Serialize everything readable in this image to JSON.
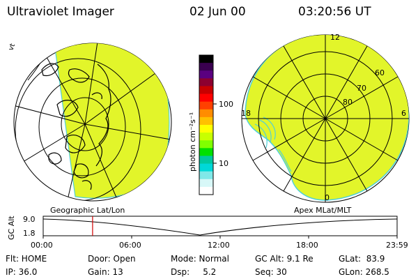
{
  "header": {
    "instrument": "Ultraviolet Imager",
    "date": "02 Jun 00",
    "time": "03:20:56 UT"
  },
  "colorbar": {
    "unit_label": "photon cm⁻²s⁻¹",
    "tick_100": "100",
    "tick_10": "10",
    "colors": [
      "#000000",
      "#3a0050",
      "#5a0080",
      "#8c0030",
      "#c80000",
      "#ff0000",
      "#ff4000",
      "#ff8c00",
      "#ffc000",
      "#ffff00",
      "#c8ff00",
      "#80ff00",
      "#00e000",
      "#00c8a0",
      "#00d8d8",
      "#80e8e8",
      "#d8f8f8",
      "#ffffff"
    ]
  },
  "left_map": {
    "label": "Geographic Lat/Lon",
    "fill_color": "#e2f52a",
    "edge_color": "#4fd0d8"
  },
  "right_map": {
    "label": "Apex MLat/MLT",
    "mlt_12": "12",
    "mlt_18": "18",
    "mlt_6": "6",
    "mlt_0": "0",
    "lat_60": "60",
    "lat_70": "70",
    "lat_80": "80",
    "fill_color": "#e2f52a"
  },
  "timeline": {
    "ylabel": "GC Alt",
    "ytick_top": "9.0",
    "ytick_bottom": "1.8",
    "ticks": [
      "00:00",
      "06:00",
      "12:00",
      "18:00",
      "23:59"
    ],
    "marker_color": "#d00000",
    "current_time_hours": 3.35
  },
  "info": {
    "flt": "Flt: HOME",
    "door": "Door: Open",
    "mode": "Mode: Normal",
    "gcalt": "GC Alt: 9.1 Re",
    "glat": "GLat:  83.9",
    "ip": "IP: 36.0",
    "gain": "Gain: 13",
    "dsp": "Dsp:     5.2",
    "seq": "Seq: 30",
    "glon": "GLon: 268.5"
  }
}
